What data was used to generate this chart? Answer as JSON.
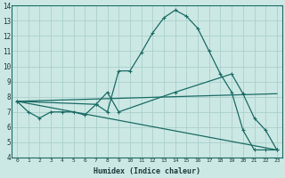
{
  "xlabel": "Humidex (Indice chaleur)",
  "bg_color": "#cce8e4",
  "grid_color": "#aacfcb",
  "line_color": "#1a6b64",
  "xlim": [
    -0.5,
    23.5
  ],
  "ylim": [
    4,
    14
  ],
  "xticks": [
    0,
    1,
    2,
    3,
    4,
    5,
    6,
    7,
    8,
    9,
    10,
    11,
    12,
    13,
    14,
    15,
    16,
    17,
    18,
    19,
    20,
    21,
    22,
    23
  ],
  "yticks": [
    4,
    5,
    6,
    7,
    8,
    9,
    10,
    11,
    12,
    13,
    14
  ],
  "line1_x": [
    0,
    1,
    2,
    3,
    4,
    5,
    6,
    7,
    8,
    9,
    10,
    11,
    12,
    13,
    14,
    15,
    16,
    17,
    18,
    19,
    20,
    21,
    22,
    23
  ],
  "line1_y": [
    7.7,
    7.0,
    6.6,
    7.0,
    7.0,
    7.0,
    6.8,
    7.5,
    7.0,
    9.7,
    9.7,
    10.9,
    12.2,
    13.2,
    13.7,
    13.3,
    12.5,
    11.0,
    9.5,
    8.3,
    5.8,
    4.5,
    4.5,
    4.5
  ],
  "line2_x": [
    0,
    7,
    8,
    9,
    14,
    19,
    20,
    21,
    22,
    23
  ],
  "line2_y": [
    7.7,
    7.5,
    8.3,
    7.0,
    8.3,
    9.5,
    8.2,
    6.6,
    5.8,
    4.5
  ],
  "line3_x": [
    0,
    23
  ],
  "line3_y": [
    7.7,
    8.2
  ],
  "line4_x": [
    0,
    23
  ],
  "line4_y": [
    7.7,
    4.5
  ],
  "xlabel_fontsize": 6.0,
  "xtick_fontsize": 4.5,
  "ytick_fontsize": 5.5
}
